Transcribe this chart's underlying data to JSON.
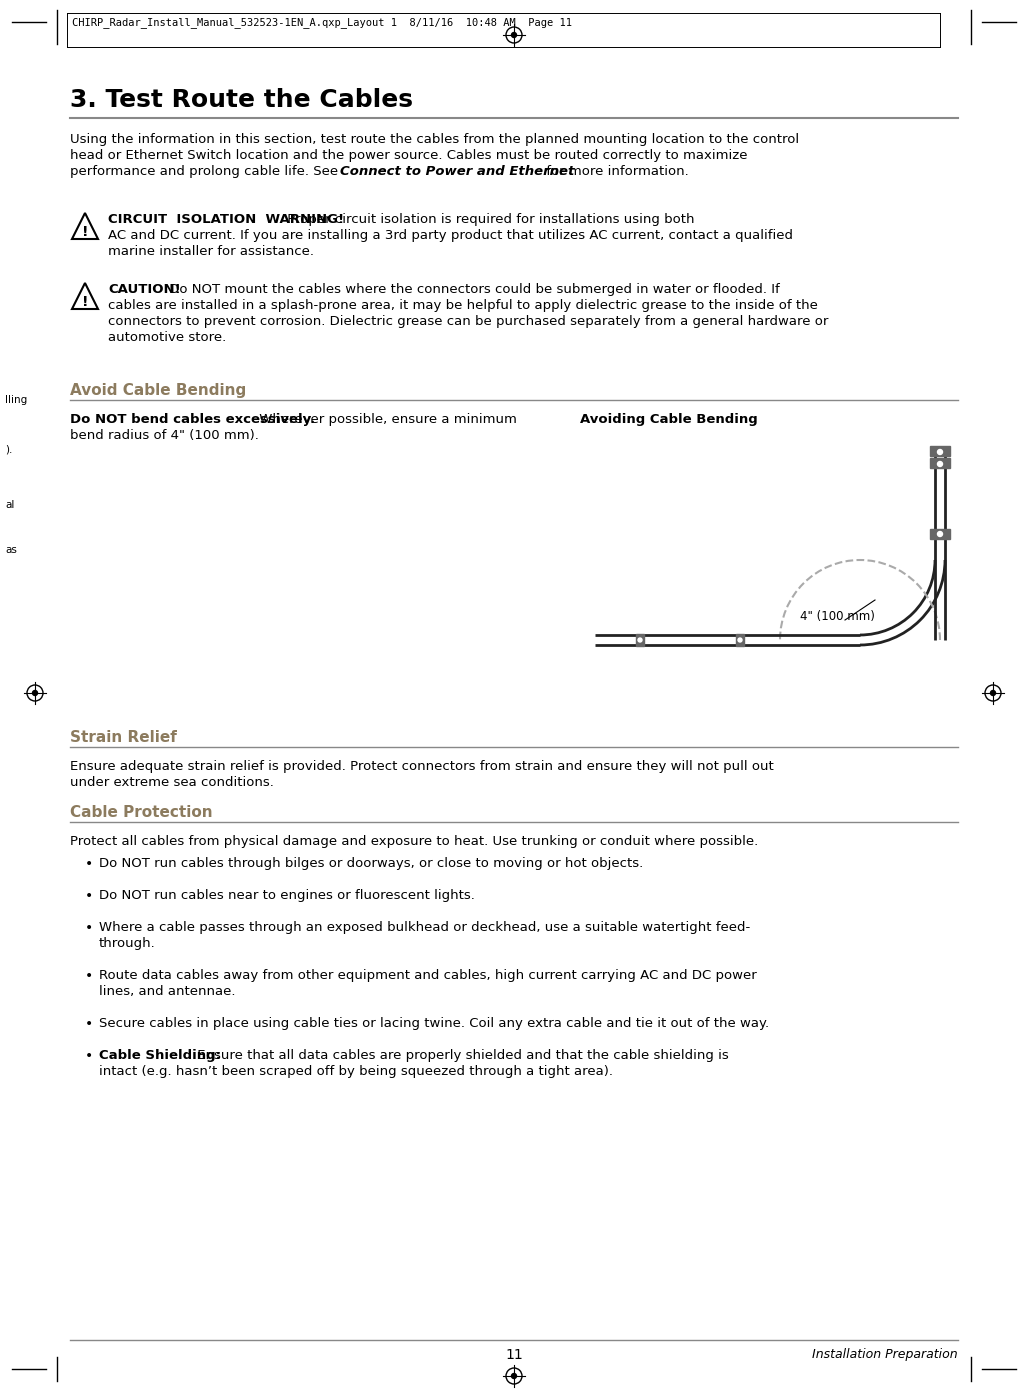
{
  "bg_color": "#ffffff",
  "header_text": "CHIRP_Radar_Install_Manual_532523-1EN_A.qxp_Layout 1  8/11/16  10:48 AM  Page 11",
  "section_title": "3. Test Route the Cables",
  "warning1_label": "CIRCUIT  ISOLATION  WARNING!",
  "warning1_line2": "AC and DC current. If you are installing a 3rd party product that utilizes AC current, contact a qualified",
  "warning1_line3": "marine installer for assistance.",
  "warning1_rest": " Proper circuit isolation is required for installations using both",
  "warning2_label": "CAUTION!",
  "warning2_rest": " Do NOT mount the cables where the connectors could be submerged in water or flooded. If",
  "warning2_line2": "cables are installed in a splash-prone area, it may be helpful to apply dielectric grease to the inside of the",
  "warning2_line3": "connectors to prevent corrosion. Dielectric grease can be purchased separately from a general hardware or",
  "warning2_line4": "automotive store.",
  "section2_title": "Avoid Cable Bending",
  "avoid_bold": "Do NOT bend cables excessively.",
  "avoid_rest": " Wherever possible, ensure a minimum",
  "avoid_line2": "bend radius of 4\" (100 mm).",
  "diagram_title": "Avoiding Cable Bending",
  "diagram_label": "4\" (100 mm)",
  "section3_title": "Strain Relief",
  "strain_line1": "Ensure adequate strain relief is provided. Protect connectors from strain and ensure they will not pull out",
  "strain_line2": "under extreme sea conditions.",
  "section4_title": "Cable Protection",
  "prot_line1": "Protect all cables from physical damage and exposure to heat. Use trunking or conduit where possible.",
  "bullet1": "Do NOT run cables through bilges or doorways, or close to moving or hot objects.",
  "bullet2": "Do NOT run cables near to engines or fluorescent lights.",
  "bullet3a": "Where a cable passes through an exposed bulkhead or deckhead, use a suitable watertight feed-",
  "bullet3b": "through.",
  "bullet4a": "Route data cables away from other equipment and cables, high current carrying AC and DC power",
  "bullet4b": "lines, and antennae.",
  "bullet5": "Secure cables in place using cable ties or lacing twine. Coil any extra cable and tie it out of the way.",
  "bullet6_bold": "Cable Shielding:",
  "bullet6_rest": " Ensure that all data cables are properly shielded and that the cable shielding is",
  "bullet6b": "intact (e.g. hasn’t been scraped off by being squeezed through a tight area).",
  "footer_num": "11",
  "footer_right": "Installation Preparation",
  "margin_text1": "lling",
  "margin_text2": ").",
  "margin_text3": "al",
  "margin_text4": "as",
  "section2_color": "#8c7b5e",
  "section3_color": "#8c7b5e",
  "section4_color": "#8c7b5e",
  "line_color": "#888888",
  "cable_color": "#222222",
  "clamp_color": "#555555",
  "dashed_color": "#aaaaaa"
}
